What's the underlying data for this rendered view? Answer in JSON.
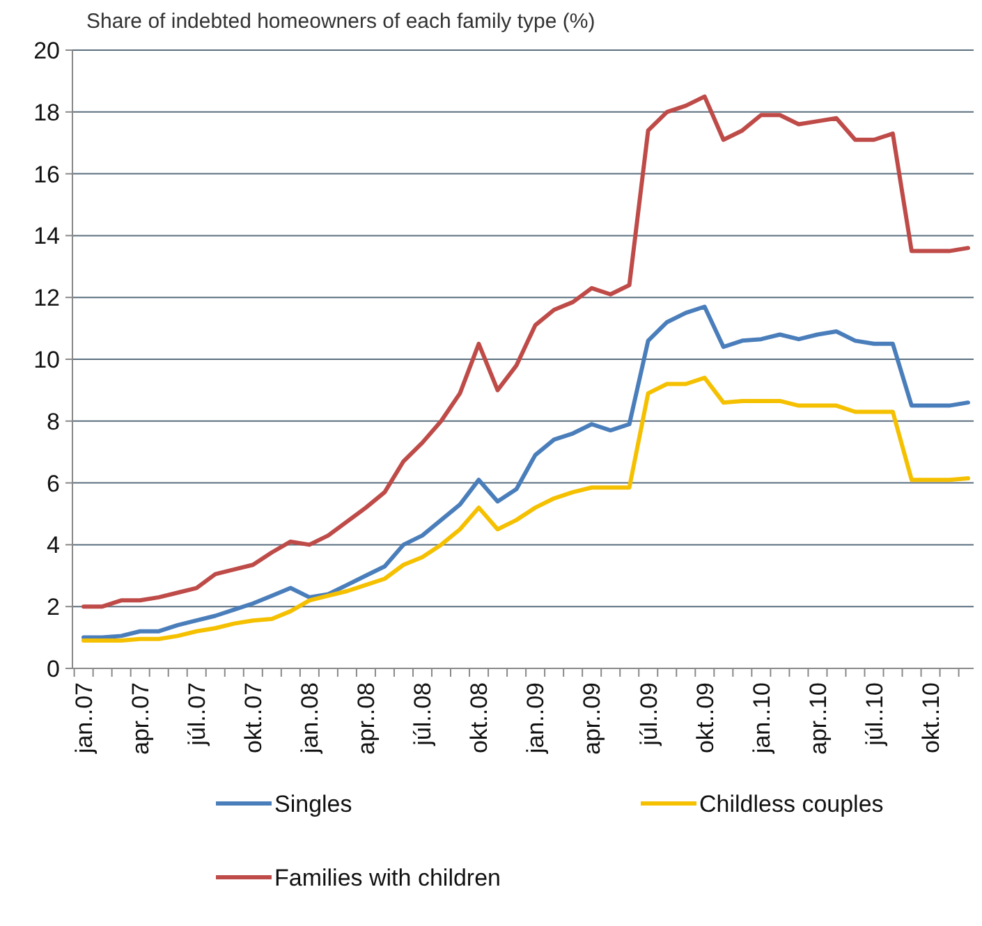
{
  "chart_data": {
    "type": "line",
    "title": "Share of indebted homeowners of each family type (%)",
    "categories": [
      "jan..07",
      null,
      null,
      "apr..07",
      null,
      null,
      "júl..07",
      null,
      null,
      "okt..07",
      null,
      null,
      "jan..08",
      null,
      null,
      "apr..08",
      null,
      null,
      "júl..08",
      null,
      null,
      "okt..08",
      null,
      null,
      "jan..09",
      null,
      null,
      "apr..09",
      null,
      null,
      "júl..09",
      null,
      null,
      "okt..09",
      null,
      null,
      "jan..10",
      null,
      null,
      "apr..10",
      null,
      null,
      "júl..10",
      null,
      null,
      "okt..10",
      null,
      null
    ],
    "series": [
      {
        "name": "Singles",
        "color": "#4a7ebb",
        "values": [
          1.0,
          1.0,
          1.05,
          1.2,
          1.2,
          1.4,
          1.55,
          1.7,
          1.9,
          2.1,
          2.35,
          2.6,
          2.3,
          2.4,
          2.7,
          3.0,
          3.3,
          4.0,
          4.3,
          4.8,
          5.3,
          6.1,
          5.4,
          5.8,
          6.9,
          7.4,
          7.6,
          7.9,
          7.7,
          7.9,
          10.6,
          11.2,
          11.5,
          11.7,
          10.4,
          10.6,
          10.65,
          10.8,
          10.65,
          10.8,
          10.9,
          10.6,
          10.5,
          10.5,
          8.5,
          8.5,
          8.5,
          8.6
        ]
      },
      {
        "name": "Childless couples",
        "color": "#f5c000",
        "values": [
          0.9,
          0.9,
          0.9,
          0.95,
          0.95,
          1.05,
          1.2,
          1.3,
          1.45,
          1.55,
          1.6,
          1.85,
          2.2,
          2.35,
          2.5,
          2.7,
          2.9,
          3.35,
          3.6,
          4.0,
          4.5,
          5.2,
          4.5,
          4.8,
          5.2,
          5.5,
          5.7,
          5.85,
          5.85,
          5.85,
          8.9,
          9.2,
          9.2,
          9.4,
          8.6,
          8.65,
          8.65,
          8.65,
          8.5,
          8.5,
          8.5,
          8.3,
          8.3,
          8.3,
          6.1,
          6.1,
          6.1,
          6.15
        ]
      },
      {
        "name": "Families with children",
        "color": "#be4b48",
        "values": [
          2.0,
          2.0,
          2.2,
          2.2,
          2.3,
          2.45,
          2.6,
          3.05,
          3.2,
          3.35,
          3.75,
          4.1,
          4.0,
          4.3,
          4.75,
          5.2,
          5.7,
          6.7,
          7.3,
          8.0,
          8.9,
          10.5,
          9.0,
          9.8,
          11.1,
          11.6,
          11.85,
          12.3,
          12.1,
          12.4,
          17.4,
          18.0,
          18.2,
          18.5,
          17.1,
          17.4,
          17.9,
          17.9,
          17.6,
          17.7,
          17.8,
          17.1,
          17.1,
          17.3,
          13.5,
          13.5,
          13.5,
          13.6
        ]
      }
    ],
    "ylim": [
      0,
      20
    ],
    "yticks": [
      0,
      2,
      4,
      6,
      8,
      10,
      12,
      14,
      16,
      18,
      20
    ],
    "grid": "y",
    "legend": "bottom",
    "marker": "none",
    "line_style": "solid"
  }
}
